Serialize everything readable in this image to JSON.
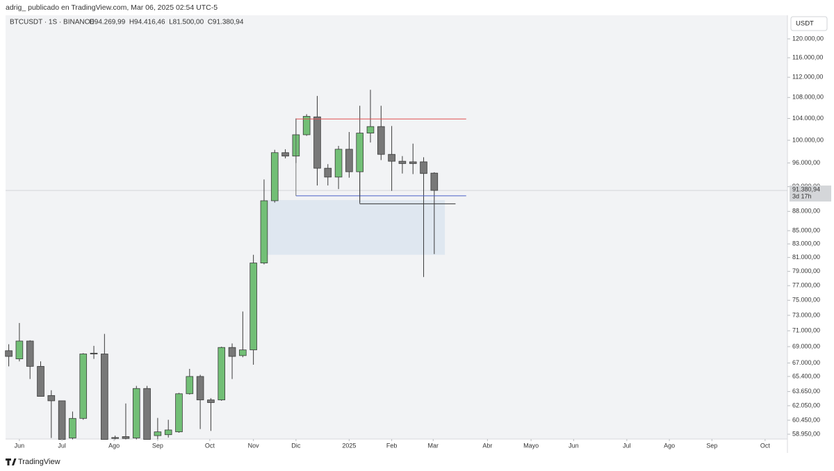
{
  "chart_data": {
    "type": "candlestick",
    "header": "adrig_ publicado en TradingView.com, Mar 06, 2025 02:54 UTC-5",
    "legend": {
      "symbol": "BTCUSDT · 1S · BINANCE",
      "ohlc": "O94.269,99  H94.416,46  L81.500,00  C91.380,94"
    },
    "unit": "USDT",
    "footer": "TradingView",
    "log_scale": true,
    "up_color": "#72bf76",
    "down_color": "#787878",
    "outline_color": "#3a3a3a",
    "x": [
      0,
      1,
      2,
      3,
      4,
      5,
      6,
      7,
      8,
      9,
      10,
      11,
      12,
      13,
      14,
      15,
      16,
      17,
      18,
      19,
      20,
      21,
      22,
      23,
      24,
      25,
      26,
      27,
      28,
      29,
      30,
      31,
      32,
      33,
      34,
      35,
      36,
      37,
      38,
      39,
      40
    ],
    "open": [
      68500,
      67500,
      69700,
      66600,
      63200,
      62600,
      58550,
      60650,
      68200,
      68100,
      58600,
      58700,
      58550,
      64000,
      58800,
      58900,
      59200,
      63400,
      65400,
      62700,
      62700,
      68900,
      67900,
      68600,
      80200,
      89700,
      97800,
      97200,
      101000,
      104300,
      95100,
      93600,
      98400,
      94500,
      101300,
      102500,
      97500,
      96300,
      96200,
      96200,
      94269.99
    ],
    "high": [
      69300,
      72000,
      69800,
      67200,
      63800,
      62600,
      61400,
      68200,
      69100,
      70600,
      58800,
      62300,
      64300,
      64300,
      60700,
      60500,
      63500,
      66300,
      65600,
      62900,
      69000,
      69400,
      73500,
      81400,
      93200,
      98300,
      98400,
      104000,
      104800,
      108300,
      95800,
      99000,
      101500,
      106400,
      109500,
      106400,
      102600,
      97200,
      99400,
      97000,
      94416.46
    ],
    "low": [
      66600,
      67200,
      65100,
      63100,
      58550,
      58400,
      58400,
      60500,
      67500,
      58400,
      58400,
      58400,
      58400,
      58400,
      58400,
      58600,
      59100,
      63300,
      59500,
      59300,
      62600,
      65100,
      67700,
      66800,
      80000,
      89400,
      96800,
      96000,
      100800,
      92200,
      92200,
      91600,
      93500,
      89400,
      99600,
      96500,
      91300,
      94200,
      94100,
      78200,
      81500
    ],
    "close": [
      67800,
      69700,
      66600,
      63100,
      62600,
      58400,
      60650,
      68100,
      68100,
      58400,
      58500,
      58500,
      64000,
      58400,
      59200,
      59400,
      63400,
      65400,
      62700,
      62400,
      68900,
      67800,
      68600,
      80200,
      89700,
      97800,
      97200,
      101000,
      104400,
      95100,
      93600,
      98400,
      94500,
      101300,
      102500,
      97500,
      96300,
      95900,
      95900,
      94200,
      91380.94
    ],
    "xlim": [
      -0.3,
      73.2
    ],
    "xticks": [
      {
        "value": 1.0,
        "label": "Jun"
      },
      {
        "value": 5.0,
        "label": "Jul"
      },
      {
        "value": 9.9,
        "label": "Ago"
      },
      {
        "value": 14.0,
        "label": "Sep"
      },
      {
        "value": 18.9,
        "label": "Oct"
      },
      {
        "value": 23.0,
        "label": "Nov"
      },
      {
        "value": 27.0,
        "label": "Dic"
      },
      {
        "value": 32.0,
        "label": "2025"
      },
      {
        "value": 36.0,
        "label": "Feb"
      },
      {
        "value": 39.9,
        "label": "Mar"
      },
      {
        "value": 45.0,
        "label": "Abr"
      },
      {
        "value": 49.1,
        "label": "Mayo"
      },
      {
        "value": 53.1,
        "label": "Jun"
      },
      {
        "value": 58.1,
        "label": "Jul"
      },
      {
        "value": 62.1,
        "label": "Ago"
      },
      {
        "value": 66.1,
        "label": "Sep"
      },
      {
        "value": 71.1,
        "label": "Oct"
      }
    ],
    "ylim": [
      58440,
      125200
    ],
    "yticks": [
      {
        "value": 120000,
        "label": "120.000,00"
      },
      {
        "value": 116000,
        "label": "116.000,00"
      },
      {
        "value": 112000,
        "label": "112.000,00"
      },
      {
        "value": 108000,
        "label": "108.000,00"
      },
      {
        "value": 104000,
        "label": "104.000,00"
      },
      {
        "value": 100000,
        "label": "100.000,00"
      },
      {
        "value": 96000,
        "label": "96.000,00"
      },
      {
        "value": 92000,
        "label": "92.000,00"
      },
      {
        "value": 88000,
        "label": "88.000,00"
      },
      {
        "value": 85000,
        "label": "85.000,00"
      },
      {
        "value": 83000,
        "label": "83.000,00"
      },
      {
        "value": 81000,
        "label": "81.000,00"
      },
      {
        "value": 79000,
        "label": "79.000,00"
      },
      {
        "value": 77000,
        "label": "77.000,00"
      },
      {
        "value": 75000,
        "label": "75.000,00"
      },
      {
        "value": 73000,
        "label": "73.000,00"
      },
      {
        "value": 71000,
        "label": "71.000,00"
      },
      {
        "value": 69000,
        "label": "69.000,00"
      },
      {
        "value": 67000,
        "label": "67.000,00"
      },
      {
        "value": 65400,
        "label": "65.400,00"
      },
      {
        "value": 63650,
        "label": "63.650,00"
      },
      {
        "value": 62050,
        "label": "62.050,00"
      },
      {
        "value": 60450,
        "label": "60.450,00"
      },
      {
        "value": 58950,
        "label": "58.950,00"
      }
    ],
    "last_price": {
      "value": 91380.94,
      "label": "91.380,94"
    },
    "countdown": "3d 17h",
    "zone": {
      "x": [
        24.2,
        41.0
      ],
      "y": [
        81400,
        89800
      ],
      "color": "#dce4ee"
    },
    "levels": [
      {
        "price": 103900,
        "x": [
          27.0,
          43.0
        ],
        "color": "#e05050"
      },
      {
        "price": 90500,
        "x": [
          27.0,
          43.0
        ],
        "color": "#4a5fc8"
      },
      {
        "price": 89200,
        "x": [
          33.0,
          42.0
        ],
        "color": "#333333"
      }
    ]
  }
}
